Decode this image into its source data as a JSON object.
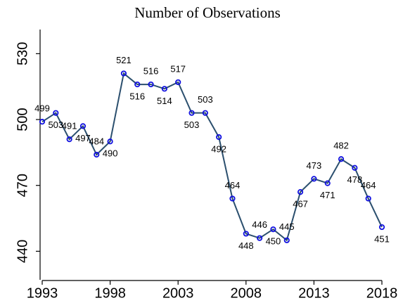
{
  "chart_data": {
    "type": "line",
    "title": "Number of Observations",
    "x": [
      1993,
      1994,
      1995,
      1996,
      1997,
      1998,
      1999,
      2000,
      2001,
      2002,
      2003,
      2004,
      2005,
      2006,
      2007,
      2008,
      2009,
      2010,
      2011,
      2012,
      2013,
      2014,
      2015,
      2016,
      2017,
      2018
    ],
    "series": [
      {
        "name": "Observations",
        "color": "#2b4f6e",
        "marker_color": "#1010e0",
        "values": [
          499,
          503,
          491,
          497,
          484,
          490,
          521,
          516,
          516,
          514,
          517,
          503,
          503,
          492,
          464,
          448,
          446,
          450,
          445,
          467,
          473,
          471,
          482,
          478,
          464,
          451
        ]
      }
    ],
    "xlim": [
      1993,
      2018
    ],
    "xticks": [
      1993,
      1998,
      2003,
      2008,
      2013,
      2018
    ],
    "ylim": [
      427,
      541
    ],
    "yticks": [
      440,
      470,
      500,
      530
    ],
    "grid": false
  }
}
